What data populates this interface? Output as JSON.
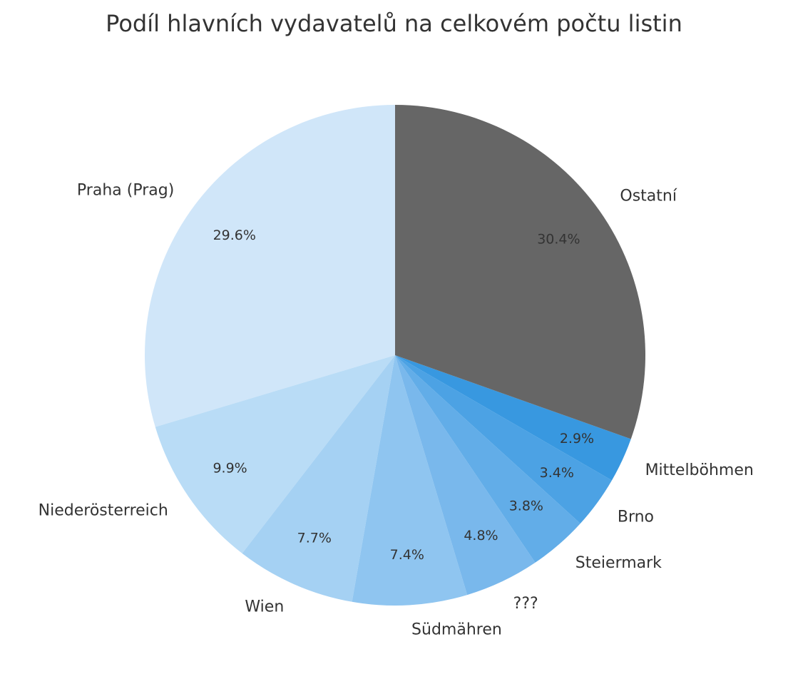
{
  "chart_data": {
    "type": "pie",
    "title": "Podíl hlavních vydavatelů na celkovém počtu listin",
    "start_angle_deg": 90,
    "direction": "counterclockwise",
    "slices": [
      {
        "label": "Praha (Prag)",
        "value": 29.6,
        "pct_label": "29.6%",
        "color": "#d0e6f9"
      },
      {
        "label": "Niederösterreich",
        "value": 9.9,
        "pct_label": "9.9%",
        "color": "#b9dcf6"
      },
      {
        "label": "Wien",
        "value": 7.7,
        "pct_label": "7.7%",
        "color": "#a5d1f3"
      },
      {
        "label": "Südmähren",
        "value": 7.4,
        "pct_label": "7.4%",
        "color": "#8fc5f0"
      },
      {
        "label": "???",
        "value": 4.8,
        "pct_label": "4.8%",
        "color": "#79b8ec"
      },
      {
        "label": "Steiermark",
        "value": 3.8,
        "pct_label": "3.8%",
        "color": "#62ade8"
      },
      {
        "label": "Brno",
        "value": 3.4,
        "pct_label": "3.4%",
        "color": "#4ca2e4"
      },
      {
        "label": "Mittelböhmen",
        "value": 2.9,
        "pct_label": "2.9%",
        "color": "#3898e0"
      },
      {
        "label": "Ostatní",
        "value": 30.4,
        "pct_label": "30.4%",
        "color": "#666666"
      }
    ]
  }
}
